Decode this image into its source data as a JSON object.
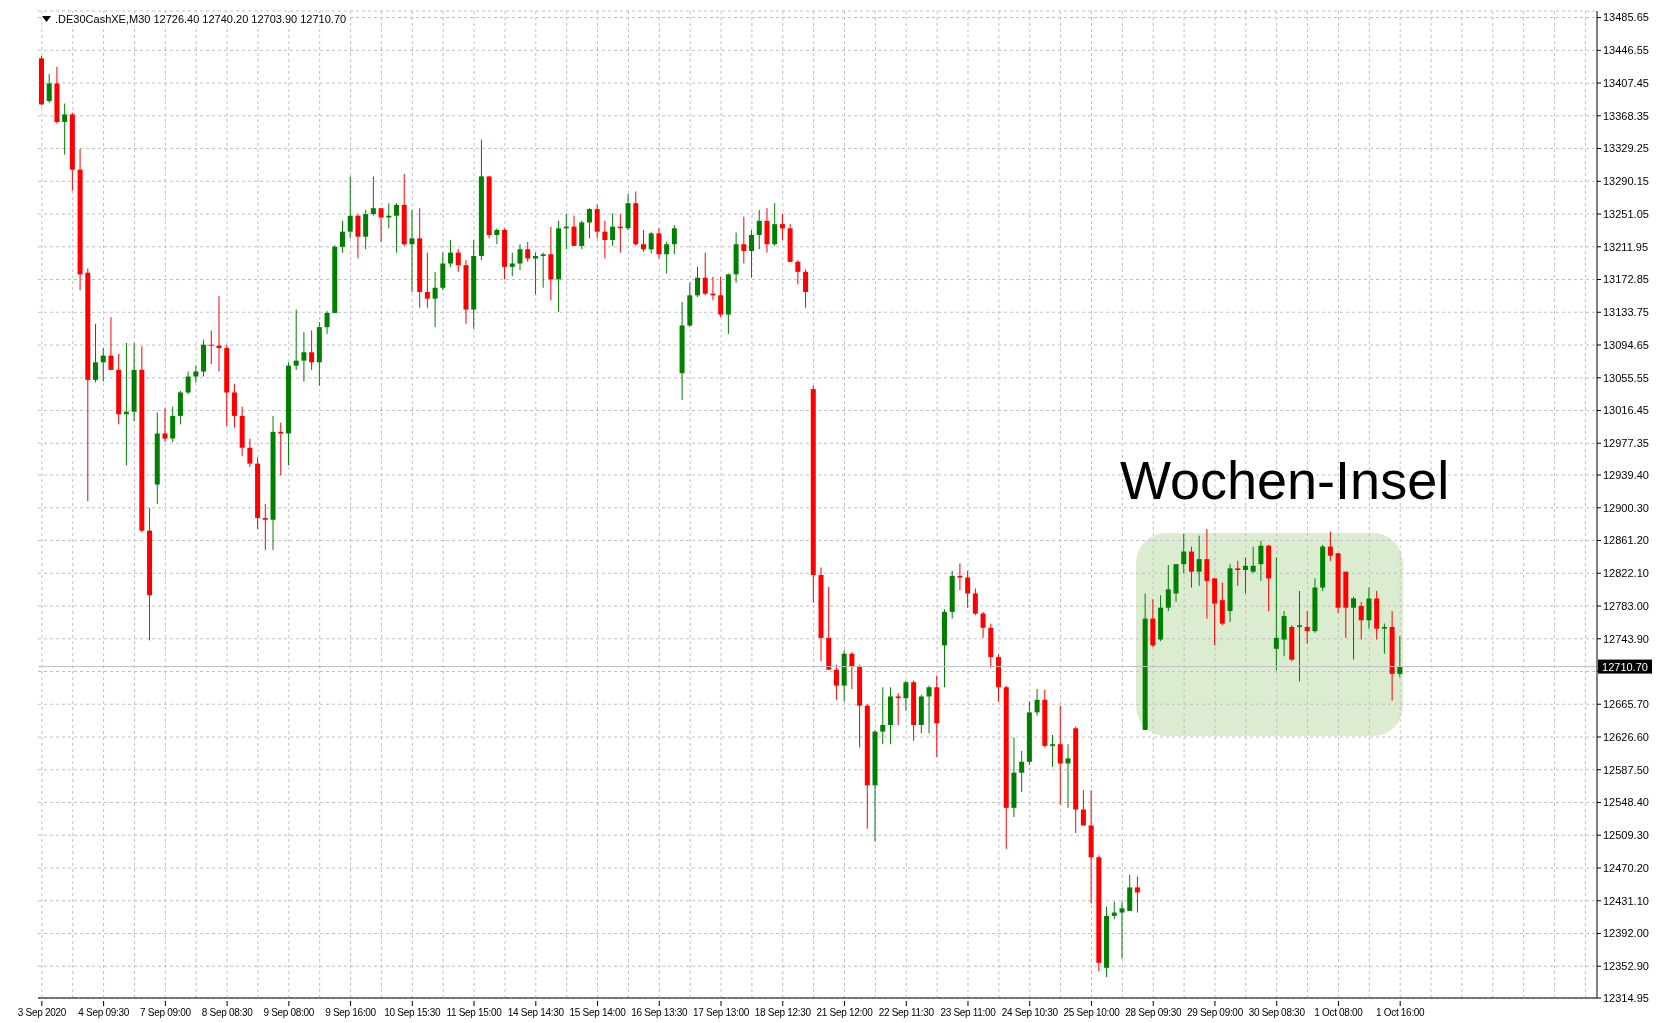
{
  "chart_data": {
    "type": "candlestick",
    "title": ".DE30CashXE,M30  12726.40 12740.20 12703.90 12710.70",
    "annotations": [
      "Wochen-Insel"
    ],
    "categories": [
      "3 Sep 2020",
      null,
      null,
      null,
      null,
      null,
      null,
      null,
      "4 Sep 09:30",
      null,
      null,
      null,
      null,
      null,
      null,
      null,
      "7 Sep 09:00",
      null,
      null,
      null,
      null,
      null,
      null,
      null,
      "8 Sep 08:30",
      null,
      null,
      null,
      null,
      null,
      null,
      null,
      "9 Sep 08:00",
      null,
      null,
      null,
      null,
      null,
      null,
      null,
      "9 Sep 16:00",
      null,
      null,
      null,
      null,
      null,
      null,
      null,
      "10 Sep 15:30",
      null,
      null,
      null,
      null,
      null,
      null,
      null,
      "11 Sep 15:00",
      null,
      null,
      null,
      null,
      null,
      null,
      null,
      "14 Sep 14:30",
      null,
      null,
      null,
      null,
      null,
      null,
      null,
      "15 Sep 14:00",
      null,
      null,
      null,
      null,
      null,
      null,
      null,
      "16 Sep 13:30",
      null,
      null,
      null,
      null,
      null,
      null,
      null,
      "17 Sep 13:00",
      null,
      null,
      null,
      null,
      null,
      null,
      null,
      "18 Sep 12:30",
      null,
      null,
      null,
      null,
      null,
      null,
      null,
      "21 Sep 12:00",
      null,
      null,
      null,
      null,
      null,
      null,
      null,
      "22 Sep 11:30",
      null,
      null,
      null,
      null,
      null,
      null,
      null,
      "23 Sep 11:00",
      null,
      null,
      null,
      null,
      null,
      null,
      null,
      "24 Sep 10:30",
      null,
      null,
      null,
      null,
      null,
      null,
      null,
      "25 Sep 10:00",
      null,
      null,
      null,
      null,
      null,
      null,
      null,
      "28 Sep 09:30",
      null,
      null,
      null,
      null,
      null,
      null,
      null,
      "29 Sep 09:00",
      null,
      null,
      null,
      null,
      null,
      null,
      null,
      "30 Sep 08:30",
      null,
      null,
      null,
      null,
      null,
      null,
      null,
      "1 Oct 08:00",
      null,
      null,
      null,
      null,
      null,
      null,
      null,
      "1 Oct 16:00",
      null,
      null,
      null,
      null,
      null,
      null,
      null,
      null,
      null,
      null,
      null,
      null,
      null,
      null,
      null,
      null,
      null,
      null,
      null,
      null,
      null,
      null,
      null,
      null,
      null
    ],
    "ohlc": [
      [
        13437,
        13440,
        13381,
        13382
      ],
      [
        13386,
        13418,
        13384,
        13407
      ],
      [
        13407,
        13427,
        13359,
        13361
      ],
      [
        13361,
        13383,
        13322,
        13370
      ],
      [
        13370,
        13372,
        13279,
        13304
      ],
      [
        13304,
        13329,
        13160,
        13179
      ],
      [
        13181,
        13186,
        12908,
        13053
      ],
      [
        13053,
        13120,
        13050,
        13074
      ],
      [
        13074,
        13091,
        13051,
        13082
      ],
      [
        13082,
        13128,
        13065,
        13065
      ],
      [
        13065,
        13084,
        13000,
        13012
      ],
      [
        13012,
        13097,
        12951,
        13015
      ],
      [
        13015,
        13097,
        13004,
        13065
      ],
      [
        13065,
        13093,
        12871,
        12873
      ],
      [
        12873,
        12900,
        12742,
        12796
      ],
      [
        12928,
        13014,
        12905,
        12989
      ],
      [
        12989,
        13019,
        12979,
        12983
      ],
      [
        12983,
        13021,
        12979,
        13010
      ],
      [
        13010,
        13040,
        13000,
        13038
      ],
      [
        13038,
        13063,
        13036,
        13057
      ],
      [
        13057,
        13070,
        13050,
        13063
      ],
      [
        13063,
        13101,
        13057,
        13095
      ],
      [
        13095,
        13112,
        13072,
        13094
      ],
      [
        13094,
        13153,
        13063,
        13091
      ],
      [
        13091,
        13095,
        12998,
        13038
      ],
      [
        13038,
        13048,
        12996,
        13010
      ],
      [
        13010,
        13021,
        12962,
        12972
      ],
      [
        12972,
        12983,
        12949,
        12953
      ],
      [
        12953,
        12960,
        12875,
        12888
      ],
      [
        12888,
        12905,
        12850,
        12886
      ],
      [
        12886,
        13010,
        12850,
        12991
      ],
      [
        12991,
        13002,
        12939,
        12989
      ],
      [
        12989,
        13074,
        12951,
        13070
      ],
      [
        13070,
        13137,
        13065,
        13076
      ],
      [
        13076,
        13110,
        13051,
        13086
      ],
      [
        13086,
        13112,
        13065,
        13074
      ],
      [
        13074,
        13122,
        13046,
        13116
      ],
      [
        13116,
        13135,
        13108,
        13133
      ],
      [
        13133,
        13214,
        13133,
        13212
      ],
      [
        13212,
        13243,
        13205,
        13230
      ],
      [
        13230,
        13296,
        13222,
        13249
      ],
      [
        13249,
        13251,
        13198,
        13224
      ],
      [
        13224,
        13256,
        13209,
        13251
      ],
      [
        13251,
        13296,
        13249,
        13258
      ],
      [
        13258,
        13258,
        13218,
        13247
      ],
      [
        13247,
        13264,
        13234,
        13249
      ],
      [
        13249,
        13264,
        13205,
        13262
      ],
      [
        13262,
        13299,
        13213,
        13215
      ],
      [
        13215,
        13256,
        13158,
        13222
      ],
      [
        13222,
        13258,
        13139,
        13158
      ],
      [
        13158,
        13205,
        13139,
        13150
      ],
      [
        13150,
        13182,
        13116,
        13163
      ],
      [
        13163,
        13205,
        13160,
        13192
      ],
      [
        13192,
        13220,
        13188,
        13205
      ],
      [
        13205,
        13209,
        13182,
        13190
      ],
      [
        13190,
        13196,
        13120,
        13137
      ],
      [
        13137,
        13220,
        13114,
        13201
      ],
      [
        13201,
        13340,
        13196,
        13296
      ],
      [
        13296,
        13296,
        13222,
        13226
      ],
      [
        13226,
        13234,
        13215,
        13232
      ],
      [
        13232,
        13234,
        13173,
        13188
      ],
      [
        13188,
        13205,
        13177,
        13192
      ],
      [
        13192,
        13215,
        13184,
        13209
      ],
      [
        13209,
        13218,
        13194,
        13198
      ],
      [
        13198,
        13205,
        13155,
        13201
      ],
      [
        13201,
        13205,
        13163,
        13203
      ],
      [
        13203,
        13236,
        13148,
        13173
      ],
      [
        13173,
        13243,
        13134,
        13234
      ],
      [
        13234,
        13251,
        13209,
        13236
      ],
      [
        13236,
        13249,
        13213,
        13213
      ],
      [
        13213,
        13243,
        13209,
        13241
      ],
      [
        13241,
        13258,
        13222,
        13257
      ],
      [
        13257,
        13262,
        13222,
        13230
      ],
      [
        13230,
        13243,
        13198,
        13220
      ],
      [
        13220,
        13252,
        13213,
        13236
      ],
      [
        13236,
        13251,
        13205,
        13234
      ],
      [
        13234,
        13275,
        13232,
        13264
      ],
      [
        13264,
        13278,
        13213,
        13215
      ],
      [
        13215,
        13232,
        13206,
        13209
      ],
      [
        13209,
        13230,
        13204,
        13228
      ],
      [
        13228,
        13234,
        13198,
        13203
      ],
      [
        13203,
        13218,
        13180,
        13215
      ],
      [
        13215,
        13238,
        13203,
        13234
      ],
      [
        13061,
        13146,
        13029,
        13118
      ],
      [
        13118,
        13169,
        13116,
        13154
      ],
      [
        13154,
        13188,
        13152,
        13175
      ],
      [
        13175,
        13205,
        13154,
        13156
      ],
      [
        13156,
        13176,
        13148,
        13154
      ],
      [
        13154,
        13176,
        13128,
        13131
      ],
      [
        13131,
        13180,
        13108,
        13179
      ],
      [
        13179,
        13229,
        13169,
        13215
      ],
      [
        13215,
        13248,
        13192,
        13207
      ],
      [
        13207,
        13232,
        13175,
        13226
      ],
      [
        13226,
        13256,
        13209,
        13243
      ],
      [
        13243,
        13258,
        13205,
        13215
      ],
      [
        13215,
        13264,
        13213,
        13239
      ],
      [
        13239,
        13251,
        13220,
        13234
      ],
      [
        13234,
        13239,
        13194,
        13194
      ],
      [
        13194,
        13196,
        13167,
        13182
      ],
      [
        13182,
        13185,
        13139,
        13158
      ],
      [
        13042,
        13046,
        12787,
        12820
      ],
      [
        12820,
        12829,
        12717,
        12745
      ],
      [
        12745,
        12806,
        12707,
        12707
      ],
      [
        12707,
        12713,
        12671,
        12688
      ],
      [
        12688,
        12730,
        12669,
        12726
      ],
      [
        12726,
        12728,
        12684,
        12711
      ],
      [
        12711,
        12713,
        12614,
        12664
      ],
      [
        12664,
        12666,
        12517,
        12569
      ],
      [
        12569,
        12635,
        12502,
        12633
      ],
      [
        12633,
        12686,
        12618,
        12641
      ],
      [
        12641,
        12686,
        12618,
        12675
      ],
      [
        12675,
        12679,
        12641,
        12673
      ],
      [
        12673,
        12694,
        12658,
        12692
      ],
      [
        12692,
        12694,
        12622,
        12641
      ],
      [
        12641,
        12677,
        12631,
        12675
      ],
      [
        12675,
        12688,
        12631,
        12686
      ],
      [
        12686,
        12700,
        12603,
        12643
      ],
      [
        12736,
        12779,
        12686,
        12776
      ],
      [
        12776,
        12825,
        12768,
        12819
      ],
      [
        12819,
        12834,
        12802,
        12817
      ],
      [
        12817,
        12825,
        12781,
        12798
      ],
      [
        12798,
        12804,
        12772,
        12774
      ],
      [
        12774,
        12776,
        12745,
        12757
      ],
      [
        12757,
        12762,
        12709,
        12722
      ],
      [
        12722,
        12725,
        12669,
        12686
      ],
      [
        12686,
        12688,
        12493,
        12542
      ],
      [
        12542,
        12626,
        12531,
        12584
      ],
      [
        12584,
        12610,
        12561,
        12597
      ],
      [
        12597,
        12669,
        12593,
        12656
      ],
      [
        12656,
        12684,
        12652,
        12671
      ],
      [
        12671,
        12683,
        12614,
        12616
      ],
      [
        12616,
        12629,
        12591,
        12618
      ],
      [
        12618,
        12664,
        12546,
        12595
      ],
      [
        12595,
        12618,
        12542,
        12601
      ],
      [
        12637,
        12639,
        12512,
        12540
      ],
      [
        12540,
        12563,
        12521,
        12521
      ],
      [
        12521,
        12563,
        12428,
        12483
      ],
      [
        12483,
        12485,
        12347,
        12357
      ],
      [
        12351,
        12424,
        12340,
        12413
      ],
      [
        12413,
        12430,
        12409,
        12417
      ],
      [
        12417,
        12430,
        12362,
        12422
      ],
      [
        12419,
        12462,
        12419,
        12447
      ],
      [
        12447,
        12460,
        12417,
        12441
      ],
      [
        12635,
        12798,
        12635,
        12768
      ],
      [
        12768,
        12791,
        12734,
        12736
      ],
      [
        12743,
        12796,
        12741,
        12781
      ],
      [
        12781,
        12832,
        12777,
        12803
      ],
      [
        12798,
        12833,
        12788,
        12833
      ],
      [
        12833,
        12869,
        12822,
        12848
      ],
      [
        12848,
        12854,
        12805,
        12824
      ],
      [
        12824,
        12867,
        12807,
        12839
      ],
      [
        12839,
        12875,
        12768,
        12813
      ],
      [
        12816,
        12816,
        12736,
        12786
      ],
      [
        12790,
        12811,
        12760,
        12762
      ],
      [
        12777,
        12833,
        12764,
        12828
      ],
      [
        12828,
        12837,
        12807,
        12826
      ],
      [
        12826,
        12841,
        12798,
        12831
      ],
      [
        12824,
        12854,
        12822,
        12831
      ],
      [
        12833,
        12861,
        12813,
        12855
      ],
      [
        12855,
        12856,
        12777,
        12816
      ],
      [
        12732,
        12841,
        12706,
        12745
      ],
      [
        12743,
        12777,
        12723,
        12771
      ],
      [
        12758,
        12760,
        12717,
        12719
      ],
      [
        12758,
        12801,
        12693,
        12760
      ],
      [
        12758,
        12777,
        12738,
        12753
      ],
      [
        12753,
        12816,
        12751,
        12805
      ],
      [
        12805,
        12856,
        12801,
        12854
      ],
      [
        12854,
        12872,
        12837,
        12843
      ],
      [
        12846,
        12846,
        12775,
        12781
      ],
      [
        12824,
        12824,
        12745,
        12781
      ],
      [
        12781,
        12794,
        12719,
        12792
      ],
      [
        12783,
        12788,
        12743,
        12766
      ],
      [
        12766,
        12805,
        12756,
        12792
      ],
      [
        12792,
        12801,
        12743,
        12756
      ],
      [
        12756,
        12762,
        12726,
        12758
      ],
      [
        12758,
        12777,
        12670,
        12702
      ],
      [
        12702,
        12747,
        12698,
        12710.7
      ],
      null,
      null,
      null,
      null,
      null,
      null,
      null,
      null,
      null,
      null,
      null,
      null,
      null,
      null,
      null,
      null,
      null,
      null,
      null,
      null,
      null,
      null,
      null,
      null,
      null
    ],
    "colors": [
      "#ff0000",
      "#008000",
      "#ff0000",
      "#008000",
      "#ff0000",
      "#ff0000",
      "#ff0000",
      "#008000",
      "#008000",
      "#ff0000",
      "#ff0000",
      "#008000",
      "#008000",
      "#ff0000",
      "#ff0000",
      "#008000",
      "#ff0000",
      "#008000",
      "#008000",
      "#008000",
      "#008000",
      "#008000",
      "#ff0000",
      "#ff0000",
      "#ff0000",
      "#ff0000",
      "#ff0000",
      "#ff0000",
      "#ff0000",
      "#ff0000",
      "#008000",
      "#ff0000",
      "#008000",
      "#008000",
      "#008000",
      "#ff0000",
      "#008000",
      "#008000",
      "#008000",
      "#008000",
      "#008000",
      "#ff0000",
      "#008000",
      "#008000",
      "#ff0000",
      "#008000",
      "#008000",
      "#ff0000",
      "#008000",
      "#ff0000",
      "#ff0000",
      "#008000",
      "#008000",
      "#008000",
      "#ff0000",
      "#ff0000",
      "#008000",
      "#008000",
      "#ff0000",
      "#008000",
      "#ff0000",
      "#008000",
      "#008000",
      "#ff0000",
      "#008000",
      "#008000",
      "#ff0000",
      "#008000",
      "#008000",
      "#ff0000",
      "#008000",
      "#008000",
      "#ff0000",
      "#ff0000",
      "#008000",
      "#ff0000",
      "#008000",
      "#ff0000",
      "#ff0000",
      "#008000",
      "#ff0000",
      "#008000",
      "#008000",
      "#008000",
      "#008000",
      "#008000",
      "#ff0000",
      "#ff0000",
      "#ff0000",
      "#008000",
      "#008000",
      "#ff0000",
      "#008000",
      "#008000",
      "#ff0000",
      "#008000",
      "#ff0000",
      "#ff0000",
      "#ff0000",
      "#ff0000",
      "#ff0000",
      "#ff0000",
      "#ff0000",
      "#ff0000",
      "#008000",
      "#ff0000",
      "#ff0000",
      "#ff0000",
      "#008000",
      "#008000",
      "#008000",
      "#ff0000",
      "#008000",
      "#ff0000",
      "#008000",
      "#008000",
      "#ff0000",
      "#008000",
      "#008000",
      "#ff0000",
      "#ff0000",
      "#ff0000",
      "#ff0000",
      "#ff0000",
      "#ff0000",
      "#ff0000",
      "#008000",
      "#008000",
      "#008000",
      "#008000",
      "#ff0000",
      "#008000",
      "#ff0000",
      "#008000",
      "#ff0000",
      "#ff0000",
      "#ff0000",
      "#ff0000",
      "#008000",
      "#008000",
      "#008000",
      "#008000",
      "#ff0000",
      "#008000",
      "#ff0000",
      "#008000",
      "#008000",
      "#008000",
      "#008000",
      "#ff0000",
      "#008000",
      "#ff0000",
      "#ff0000",
      "#ff0000",
      "#008000",
      "#ff0000",
      "#008000",
      "#008000",
      "#008000",
      "#ff0000",
      "#008000",
      "#008000",
      "#ff0000",
      "#008000",
      "#ff0000",
      "#008000",
      "#008000",
      "#ff0000",
      "#ff0000",
      "#ff0000",
      "#008000",
      "#ff0000",
      "#008000",
      "#ff0000",
      "#008000",
      "#ff0000",
      "#008000",
      null,
      null,
      null,
      null,
      null,
      null,
      null,
      null,
      null,
      null,
      null,
      null,
      null,
      null,
      null,
      null,
      null,
      null,
      null,
      null,
      null,
      null,
      null,
      null,
      null
    ],
    "ylim": [
      12314.95,
      13493.5
    ],
    "yticks": [
      12314.95,
      {
        "value": 12352.9,
        "label": "12352.90"
      },
      {
        "value": 12392,
        "label": "12392.00"
      },
      {
        "value": 12431.1,
        "label": "12431.10"
      },
      {
        "value": 12470.2,
        "label": "12470.20"
      },
      {
        "value": 12509.3,
        "label": "12509.30"
      },
      {
        "value": 12548.4,
        "label": "12548.40"
      },
      {
        "value": 12587.5,
        "label": "12587.50"
      },
      {
        "value": 12626.6,
        "label": "12626.60"
      },
      {
        "value": 12665.7,
        "label": "12665.70"
      },
      {
        "value": 12704.8,
        "label": null
      },
      {
        "value": 12743.9,
        "label": "12743.90"
      },
      {
        "value": 12783,
        "label": "12783.00"
      },
      {
        "value": 12822.1,
        "label": "12822.10"
      },
      {
        "value": 12861.2,
        "label": "12861.20"
      },
      {
        "value": 12900.3,
        "label": "12900.30"
      },
      {
        "value": 12939.4,
        "label": "12939.40"
      },
      12977.35,
      13016.45,
      13055.55,
      13094.65,
      13133.75,
      13172.85,
      13211.95,
      13251.05,
      13290.15,
      13329.25,
      13368.35,
      13407.45,
      13446.55,
      13485.65
    ],
    "grid": true,
    "ref_lines": [
      {
        "axis": "y",
        "value": 12710.7,
        "label": "12710.70",
        "color": "#c0c0c0"
      }
    ]
  }
}
